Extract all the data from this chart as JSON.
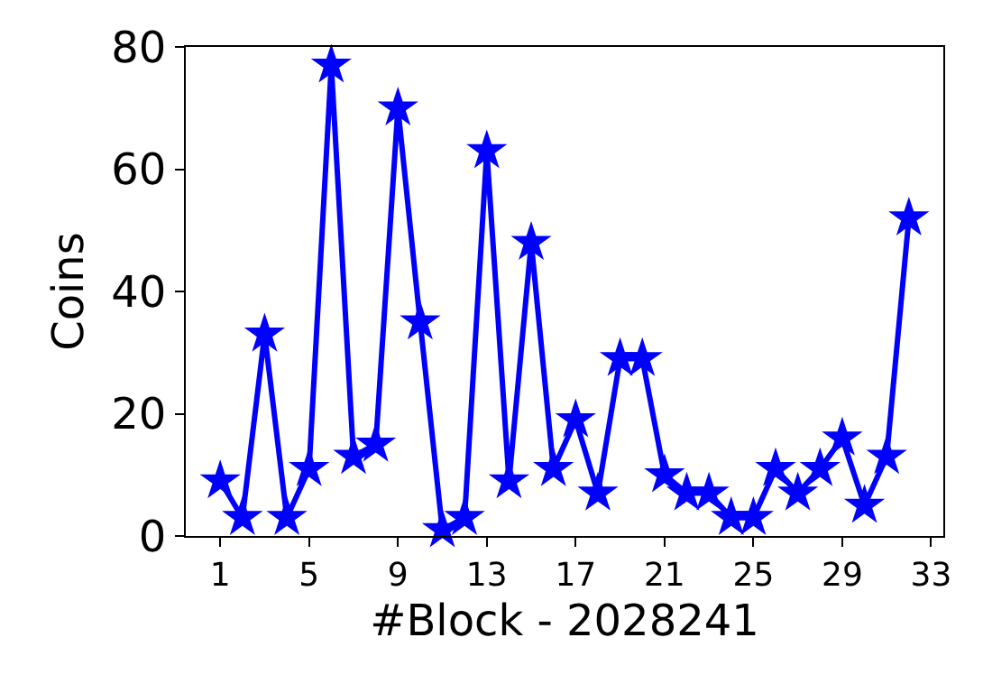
{
  "chart_data": {
    "type": "line",
    "xlabel": "#Block - 2028241",
    "ylabel": "Coins",
    "x": [
      1,
      2,
      3,
      4,
      5,
      6,
      7,
      8,
      9,
      10,
      11,
      12,
      13,
      14,
      15,
      16,
      17,
      18,
      19,
      20,
      21,
      22,
      23,
      24,
      25,
      26,
      27,
      28,
      29,
      30,
      31,
      32
    ],
    "series": [
      {
        "color": "#0000ff",
        "values": [
          9,
          3,
          33,
          3,
          11,
          77,
          13,
          15,
          70,
          35,
          1,
          3,
          63,
          9,
          48,
          11,
          19,
          7,
          29,
          29,
          10,
          7,
          7,
          3,
          3,
          11,
          7,
          11,
          16,
          5,
          13,
          52
        ]
      }
    ],
    "xlim": [
      -0.55,
      33.55
    ],
    "xticks": [
      1,
      5,
      9,
      13,
      17,
      21,
      25,
      29,
      33
    ],
    "ylim": [
      0,
      80
    ],
    "yticks": [
      0,
      20,
      40,
      60,
      80
    ],
    "marker": "star",
    "line_style": "solid"
  }
}
